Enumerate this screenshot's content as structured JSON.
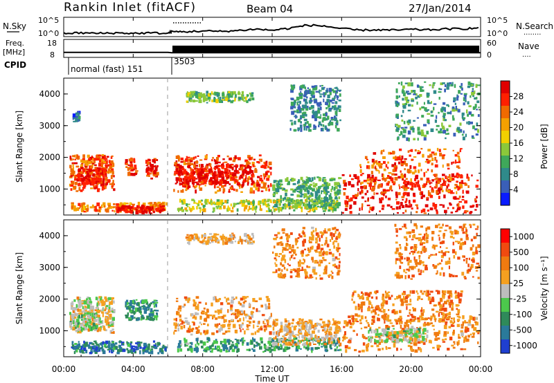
{
  "header": {
    "station": "Rankin Inlet (fitACF)",
    "beam": "Beam 04",
    "date": "27/Jan/2014"
  },
  "noise_panel": {
    "left_label": "N.Sky",
    "left_ticks": [
      "10^5",
      "10^0"
    ],
    "right_ticks": [
      "10^5",
      "10^0"
    ],
    "right_label": "N.Search",
    "right_legend": "........"
  },
  "freq_panel": {
    "left_label_1": "Freq.",
    "left_label_2": "[MHz]",
    "left_ticks": [
      "18",
      "8"
    ],
    "right_ticks": [
      "60",
      "0"
    ],
    "right_label": "Nave",
    "right_legend": "...."
  },
  "cpid": {
    "label": "CPID",
    "entries": [
      {
        "start_hour": 0.25,
        "text": "normal (fast) 151"
      },
      {
        "start_hour": 6.2,
        "text": "3503"
      }
    ]
  },
  "axes": {
    "xlabel": "Time UT",
    "xticks": [
      "00:00",
      "04:00",
      "08:00",
      "12:00",
      "16:00",
      "20:00",
      "00:00"
    ],
    "ylabel": "Slant Range [km]",
    "yticks": [
      "1000",
      "2000",
      "3000",
      "4000"
    ]
  },
  "colorbars": {
    "power": {
      "label": "Power [dB]",
      "ticks": [
        "4",
        "8",
        "12",
        "16",
        "20",
        "24",
        "28"
      ],
      "colors": [
        "#0a1cff",
        "#3a5fb8",
        "#2f8a8a",
        "#3fa85a",
        "#8bc83a",
        "#f2d000",
        "#f5a000",
        "#f06a00",
        "#ff2000",
        "#e00000"
      ]
    },
    "velocity": {
      "label": "Velocity [m s⁻¹]",
      "ticks": [
        "1000",
        "500",
        "100",
        "25",
        "-25",
        "-100",
        "-500",
        "-1000"
      ],
      "colors": [
        "#1f3fd0",
        "#2a7a9a",
        "#2f8a5a",
        "#4cc84c",
        "#bdbdbd",
        "#f5a020",
        "#f07a10",
        "#f04a10",
        "#ff0000"
      ]
    }
  },
  "chart_data": [
    {
      "type": "heatmap",
      "name": "power",
      "x_range_hours": [
        0,
        24
      ],
      "y_range_km": [
        180,
        4500
      ],
      "regions": [
        {
          "t0": 0.3,
          "t1": 3.0,
          "r0": 900,
          "r1": 2100,
          "level": 0.8
        },
        {
          "t0": 0.8,
          "t1": 2.5,
          "r0": 1100,
          "r1": 1700,
          "level": 0.92
        },
        {
          "t0": 3.5,
          "t1": 4.3,
          "r0": 1400,
          "r1": 2000,
          "level": 0.85
        },
        {
          "t0": 4.7,
          "t1": 5.5,
          "r0": 1300,
          "r1": 2000,
          "level": 0.88
        },
        {
          "t0": 0.4,
          "t1": 6.0,
          "r0": 250,
          "r1": 600,
          "level": 0.7
        },
        {
          "t0": 3.0,
          "t1": 6.0,
          "r0": 200,
          "r1": 500,
          "level": 0.95
        },
        {
          "t0": 6.3,
          "t1": 12.0,
          "r0": 850,
          "r1": 2100,
          "level": 0.82
        },
        {
          "t0": 6.4,
          "t1": 11.0,
          "r0": 1100,
          "r1": 1800,
          "level": 0.93
        },
        {
          "t0": 6.5,
          "t1": 16.0,
          "r0": 250,
          "r1": 700,
          "level": 0.5
        },
        {
          "t0": 12.0,
          "t1": 16.0,
          "r0": 400,
          "r1": 1400,
          "level": 0.35
        },
        {
          "t0": 16.0,
          "t1": 23.9,
          "r0": 200,
          "r1": 1500,
          "level": 0.9
        },
        {
          "t0": 17.0,
          "t1": 23.0,
          "r0": 800,
          "r1": 2300,
          "level": 0.78
        },
        {
          "t0": 7.0,
          "t1": 11.0,
          "r0": 3700,
          "r1": 4100,
          "level": 0.4
        },
        {
          "t0": 13.0,
          "t1": 16.0,
          "r0": 2800,
          "r1": 4300,
          "level": 0.25
        },
        {
          "t0": 19.0,
          "t1": 24.0,
          "r0": 2500,
          "r1": 4400,
          "level": 0.3
        },
        {
          "t0": 0.5,
          "t1": 1.0,
          "r0": 3100,
          "r1": 3500,
          "level": 0.2
        }
      ]
    },
    {
      "type": "heatmap",
      "name": "velocity",
      "x_range_hours": [
        0,
        24
      ],
      "y_range_km": [
        180,
        4500
      ],
      "regions": [
        {
          "t0": 0.3,
          "t1": 3.0,
          "r0": 900,
          "r1": 2100,
          "level": 0.55
        },
        {
          "t0": 0.3,
          "t1": 2.0,
          "r0": 1000,
          "r1": 1600,
          "level": 0.45
        },
        {
          "t0": 3.5,
          "t1": 5.5,
          "r0": 1300,
          "r1": 2000,
          "level": 0.25
        },
        {
          "t0": 0.4,
          "t1": 6.0,
          "r0": 250,
          "r1": 700,
          "level": 0.2
        },
        {
          "t0": 6.3,
          "t1": 12.0,
          "r0": 850,
          "r1": 2100,
          "level": 0.65
        },
        {
          "t0": 6.5,
          "t1": 16.0,
          "r0": 300,
          "r1": 800,
          "level": 0.3
        },
        {
          "t0": 12.0,
          "t1": 16.0,
          "r0": 500,
          "r1": 1400,
          "level": 0.6
        },
        {
          "t0": 16.0,
          "t1": 24.0,
          "r0": 300,
          "r1": 1500,
          "level": 0.7
        },
        {
          "t0": 17.5,
          "t1": 21.0,
          "r0": 600,
          "r1": 1100,
          "level": 0.47
        },
        {
          "t0": 16.5,
          "t1": 23.0,
          "r0": 1200,
          "r1": 2300,
          "level": 0.72
        },
        {
          "t0": 7.0,
          "t1": 11.0,
          "r0": 3700,
          "r1": 4100,
          "level": 0.6
        },
        {
          "t0": 12.0,
          "t1": 16.0,
          "r0": 2600,
          "r1": 4300,
          "level": 0.7
        },
        {
          "t0": 19.0,
          "t1": 24.0,
          "r0": 2600,
          "r1": 4400,
          "level": 0.72
        }
      ]
    },
    {
      "type": "line",
      "name": "noise_sky",
      "x_hours": [
        0,
        1,
        2,
        3,
        4,
        5,
        6,
        6.2,
        7,
        8,
        9,
        10,
        11,
        12,
        13,
        14,
        15,
        16,
        17,
        18,
        19,
        20,
        21,
        22,
        23,
        24
      ],
      "values_log10": [
        0.5,
        0.6,
        0.5,
        0.6,
        0.5,
        0.6,
        0.5,
        0.9,
        0.9,
        1.1,
        1.0,
        1.2,
        1.6,
        1.3,
        1.8,
        2.6,
        2.4,
        1.7,
        1.3,
        1.4,
        1.3,
        1.5,
        1.4,
        1.6,
        1.7,
        1.9
      ]
    },
    {
      "type": "line",
      "name": "frequency",
      "x_hours": [
        0,
        6.0,
        6.2,
        24
      ],
      "values_mhz": [
        10.8,
        10.8,
        10.6,
        10.6
      ]
    }
  ]
}
